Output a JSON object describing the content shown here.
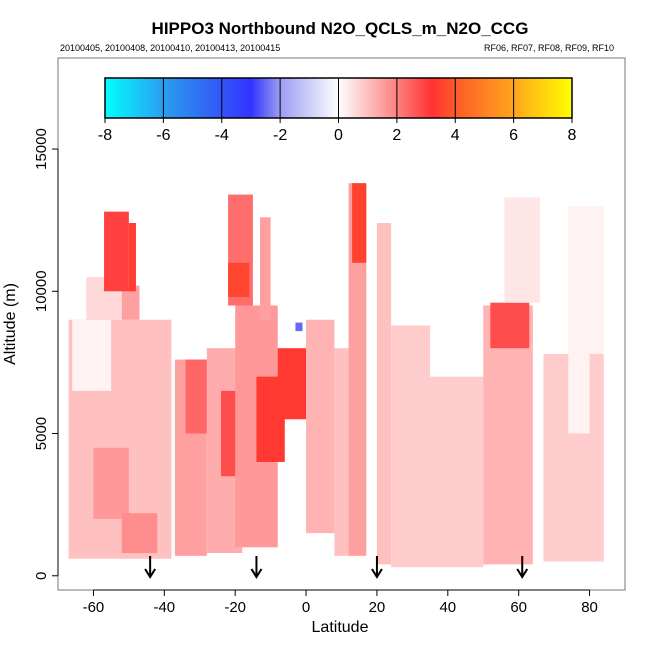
{
  "chart_data": {
    "type": "heatmap",
    "title": "HIPPO3 Northbound N2O_QCLS_m_N2O_CCG",
    "subtitle_left": "20100405, 20100408, 20100410, 20100413, 20100415",
    "subtitle_right": "RF06, RF07, RF08, RF09, RF10",
    "xlabel": "Latitude",
    "ylabel": "Altitude (m)",
    "xlim": [
      -70,
      90
    ],
    "ylim": [
      -500,
      18200
    ],
    "xticks": [
      -60,
      -40,
      -20,
      0,
      20,
      40,
      60,
      80
    ],
    "yticks": [
      0,
      5000,
      10000,
      15000
    ],
    "colorbar": {
      "ticks": [
        -8,
        -6,
        -4,
        -2,
        0,
        2,
        4,
        6,
        8
      ],
      "range": [
        -8,
        8
      ],
      "stops": [
        {
          "v": -8,
          "c": "#00ffff"
        },
        {
          "v": -6,
          "c": "#2a9ef0"
        },
        {
          "v": -4,
          "c": "#3355f5"
        },
        {
          "v": -3,
          "c": "#3333ff"
        },
        {
          "v": -2,
          "c": "#9c9cf2"
        },
        {
          "v": 0,
          "c": "#ffffff"
        },
        {
          "v": 2,
          "c": "#ff8080"
        },
        {
          "v": 3.2,
          "c": "#ff3333"
        },
        {
          "v": 4,
          "c": "#ff5a2a"
        },
        {
          "v": 6,
          "c": "#ffa51c"
        },
        {
          "v": 8,
          "c": "#ffff00"
        }
      ]
    },
    "flight_markers_latitude": [
      -44,
      -14,
      20,
      61
    ],
    "cells": [
      {
        "lat": [
          -67,
          -38
        ],
        "alt": [
          600,
          9000
        ],
        "value": 1.0
      },
      {
        "lat": [
          -66,
          -55
        ],
        "alt": [
          6500,
          9000
        ],
        "value": 0.2
      },
      {
        "lat": [
          -62,
          -52
        ],
        "alt": [
          9000,
          10500
        ],
        "value": 0.6
      },
      {
        "lat": [
          -52,
          -47
        ],
        "alt": [
          9000,
          10200
        ],
        "value": 1.5
      },
      {
        "lat": [
          -57,
          -50
        ],
        "alt": [
          10000,
          12800
        ],
        "value": 3.0
      },
      {
        "lat": [
          -50,
          -48
        ],
        "alt": [
          10000,
          12400
        ],
        "value": 3.4
      },
      {
        "lat": [
          -60,
          -50
        ],
        "alt": [
          2000,
          4500
        ],
        "value": 1.6
      },
      {
        "lat": [
          -52,
          -42
        ],
        "alt": [
          800,
          2200
        ],
        "value": 1.8
      },
      {
        "lat": [
          -37,
          -28
        ],
        "alt": [
          700,
          7600
        ],
        "value": 1.5
      },
      {
        "lat": [
          -34,
          -28
        ],
        "alt": [
          5000,
          7600
        ],
        "value": 2.4
      },
      {
        "lat": [
          -28,
          -18
        ],
        "alt": [
          800,
          8000
        ],
        "value": 1.3
      },
      {
        "lat": [
          -24,
          -12
        ],
        "alt": [
          3500,
          6500
        ],
        "value": 2.8
      },
      {
        "lat": [
          -20,
          -8
        ],
        "alt": [
          1000,
          9500
        ],
        "value": 1.6
      },
      {
        "lat": [
          -14,
          -6
        ],
        "alt": [
          4000,
          7000
        ],
        "value": 3.3
      },
      {
        "lat": [
          -22,
          -15
        ],
        "alt": [
          9500,
          13400
        ],
        "value": 2.3
      },
      {
        "lat": [
          -22,
          -16
        ],
        "alt": [
          9800,
          11000
        ],
        "value": 3.6
      },
      {
        "lat": [
          -13,
          -10
        ],
        "alt": [
          9000,
          12600
        ],
        "value": 1.5
      },
      {
        "lat": [
          -8,
          0
        ],
        "alt": [
          5500,
          8000
        ],
        "value": 3.3
      },
      {
        "lat": [
          -3,
          -1
        ],
        "alt": [
          8600,
          8900
        ],
        "value": -2.5
      },
      {
        "lat": [
          0,
          8
        ],
        "alt": [
          1500,
          9000
        ],
        "value": 1.2
      },
      {
        "lat": [
          8,
          12
        ],
        "alt": [
          700,
          8000
        ],
        "value": 1.0
      },
      {
        "lat": [
          12,
          17
        ],
        "alt": [
          700,
          13800
        ],
        "value": 1.5
      },
      {
        "lat": [
          13,
          17
        ],
        "alt": [
          11000,
          13800
        ],
        "value": 3.5
      },
      {
        "lat": [
          20,
          24
        ],
        "alt": [
          400,
          12400
        ],
        "value": 1.0
      },
      {
        "lat": [
          24,
          35
        ],
        "alt": [
          300,
          8800
        ],
        "value": 0.8
      },
      {
        "lat": [
          35,
          50
        ],
        "alt": [
          300,
          7000
        ],
        "value": 0.8
      },
      {
        "lat": [
          50,
          64
        ],
        "alt": [
          400,
          9500
        ],
        "value": 1.2
      },
      {
        "lat": [
          52,
          63
        ],
        "alt": [
          8000,
          9600
        ],
        "value": 2.8
      },
      {
        "lat": [
          56,
          66
        ],
        "alt": [
          9600,
          13300
        ],
        "value": 0.4
      },
      {
        "lat": [
          67,
          84
        ],
        "alt": [
          500,
          7800
        ],
        "value": 0.8
      },
      {
        "lat": [
          74,
          80
        ],
        "alt": [
          5000,
          7800
        ],
        "value": 0.2
      },
      {
        "lat": [
          74,
          84
        ],
        "alt": [
          7800,
          13000
        ],
        "value": 0.2
      }
    ]
  }
}
